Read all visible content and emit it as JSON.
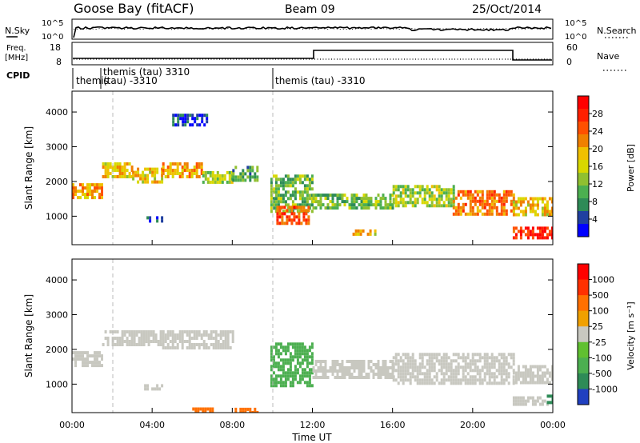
{
  "header": {
    "station": "Goose Bay (fitACF)",
    "beam": "Beam 09",
    "date": "25/Oct/2014"
  },
  "noise_panel": {
    "left_label": "N.Sky",
    "right_label": "N.Search",
    "left_ticks": [
      "10^5",
      "10^0"
    ],
    "right_ticks": [
      "10^5",
      "10^0"
    ]
  },
  "freq_panel": {
    "left_label_line1": "Freq.",
    "left_label_line2": "[MHz]",
    "left_ticks": [
      "18",
      "8"
    ],
    "right_label": "Nave",
    "right_ticks": [
      "60",
      "0"
    ]
  },
  "cpid": {
    "label": "CPID",
    "entries": [
      "themis",
      "themis (tau) 3310",
      "(tau) -3310",
      "themis (tau) -3310"
    ]
  },
  "x_axis": {
    "title": "Time UT",
    "ticks": [
      "00:00",
      "04:00",
      "08:00",
      "12:00",
      "16:00",
      "20:00",
      "00:00"
    ]
  },
  "power_colorbar": {
    "title": "Power [dB]",
    "ticks": [
      "28",
      "24",
      "20",
      "16",
      "12",
      "8",
      "4"
    ],
    "colors": [
      "#0000ff",
      "#2040a0",
      "#2e8b57",
      "#4caf50",
      "#90c030",
      "#d8d800",
      "#f0c000",
      "#f08000",
      "#ff5000",
      "#ff2000",
      "#ff0000"
    ]
  },
  "velocity_colorbar": {
    "title": "Velocity [m s⁻¹]",
    "ticks": [
      "1000",
      "500",
      "100",
      "25",
      "-25",
      "-100",
      "-500",
      "-1000"
    ],
    "colors": [
      "#2040c0",
      "#2e8b57",
      "#4caf50",
      "#60c030",
      "#c8c8c0",
      "#f0a000",
      "#ff7000",
      "#ff3000",
      "#ff0000"
    ]
  },
  "chart_data": [
    {
      "type": "heatmap",
      "name": "power",
      "ylabel": "Slant Range [km]",
      "yticks": [
        1000,
        2000,
        3000,
        4000
      ],
      "ylim": [
        180,
        4600
      ],
      "xlim": [
        0,
        24
      ],
      "bands": [
        {
          "t0": 0.0,
          "t1": 1.5,
          "r0": 1550,
          "r1": 1950,
          "c": 20
        },
        {
          "t0": 1.5,
          "t1": 3.0,
          "r0": 2150,
          "r1": 2550,
          "c": 18
        },
        {
          "t0": 3.0,
          "t1": 4.5,
          "r0": 2000,
          "r1": 2400,
          "c": 18
        },
        {
          "t0": 4.5,
          "t1": 6.5,
          "r0": 2100,
          "r1": 2550,
          "c": 20
        },
        {
          "t0": 6.5,
          "t1": 8.0,
          "r0": 1950,
          "r1": 2300,
          "c": 14
        },
        {
          "t0": 8.0,
          "t1": 9.2,
          "r0": 2000,
          "r1": 2450,
          "c": 10
        },
        {
          "t0": 9.9,
          "t1": 12.0,
          "r0": 1100,
          "r1": 2200,
          "c": 12
        },
        {
          "t0": 10.2,
          "t1": 11.8,
          "r0": 800,
          "r1": 1300,
          "c": 24
        },
        {
          "t0": 12.0,
          "t1": 16.0,
          "r0": 1250,
          "r1": 1650,
          "c": 12
        },
        {
          "t0": 16.0,
          "t1": 19.0,
          "r0": 1300,
          "r1": 1900,
          "c": 14
        },
        {
          "t0": 19.0,
          "t1": 22.0,
          "r0": 1050,
          "r1": 1750,
          "c": 22
        },
        {
          "t0": 22.0,
          "t1": 24.0,
          "r0": 1050,
          "r1": 1550,
          "c": 18
        },
        {
          "t0": 22.0,
          "t1": 24.0,
          "r0": 400,
          "r1": 700,
          "c": 26
        },
        {
          "t0": 14.0,
          "t1": 15.2,
          "r0": 500,
          "r1": 620,
          "c": 18
        },
        {
          "t0": 5.0,
          "t1": 6.7,
          "r0": 3600,
          "r1": 3950,
          "c": 5
        },
        {
          "t0": 3.6,
          "t1": 4.5,
          "r0": 850,
          "r1": 1000,
          "c": 6
        }
      ]
    },
    {
      "type": "heatmap",
      "name": "velocity",
      "ylabel": "Slant Range [km]",
      "yticks": [
        1000,
        2000,
        3000,
        4000
      ],
      "ylim": [
        180,
        4600
      ],
      "xlim": [
        0,
        24
      ],
      "bands": [
        {
          "t0": 0.0,
          "t1": 1.5,
          "r0": 1550,
          "r1": 1950,
          "c": 0
        },
        {
          "t0": 1.5,
          "t1": 4.5,
          "r0": 2100,
          "r1": 2550,
          "c": 0
        },
        {
          "t0": 4.5,
          "t1": 8.0,
          "r0": 2050,
          "r1": 2550,
          "c": 0
        },
        {
          "t0": 9.9,
          "t1": 12.0,
          "r0": 1000,
          "r1": 2200,
          "c": 50
        },
        {
          "t0": 12.0,
          "t1": 16.0,
          "r0": 1150,
          "r1": 1700,
          "c": 0
        },
        {
          "t0": 16.0,
          "t1": 22.0,
          "r0": 1050,
          "r1": 1900,
          "c": 0
        },
        {
          "t0": 22.0,
          "t1": 24.0,
          "r0": 1050,
          "r1": 1550,
          "c": 0
        },
        {
          "t0": 22.0,
          "t1": 23.7,
          "r0": 400,
          "r1": 650,
          "c": 0
        },
        {
          "t0": 23.7,
          "t1": 24.0,
          "r0": 450,
          "r1": 700,
          "c": 150
        },
        {
          "t0": 6.0,
          "t1": 7.0,
          "r0": 200,
          "r1": 330,
          "c": -150
        },
        {
          "t0": 8.0,
          "t1": 9.2,
          "r0": 200,
          "r1": 320,
          "c": -150
        },
        {
          "t0": 3.6,
          "t1": 4.5,
          "r0": 850,
          "r1": 1000,
          "c": 0
        }
      ]
    }
  ]
}
